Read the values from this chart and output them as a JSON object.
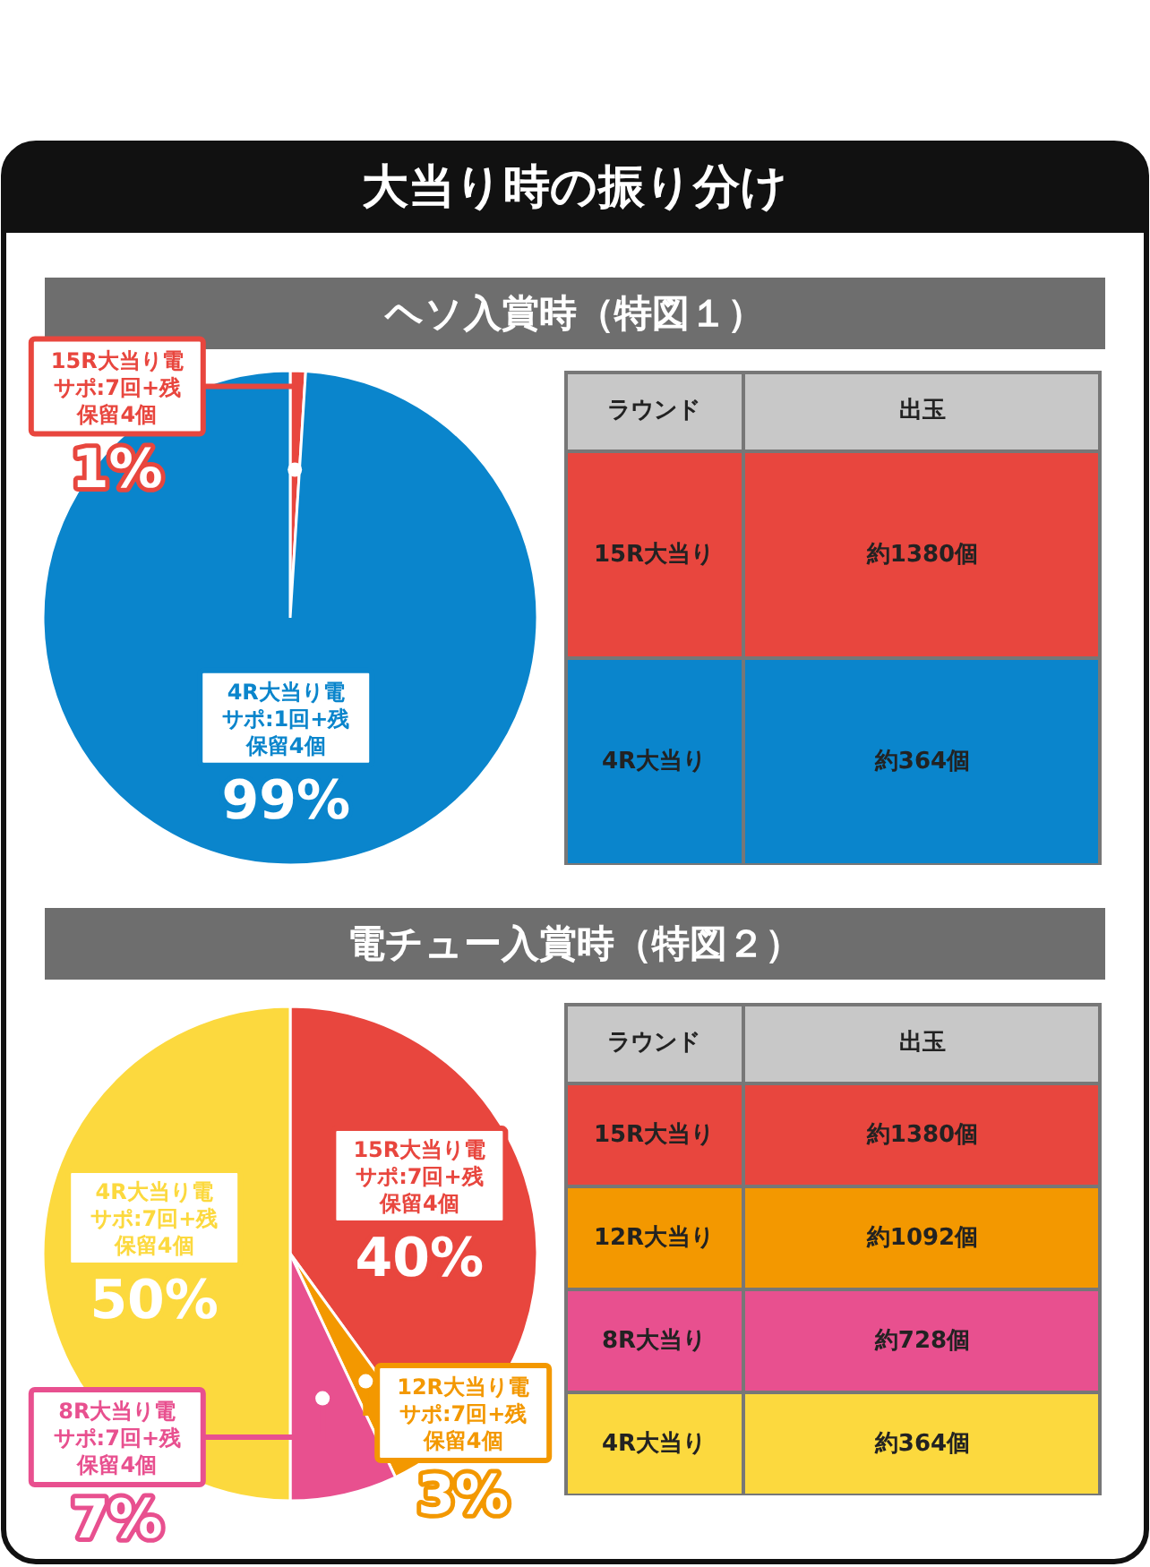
{
  "chart_data": [
    {
      "type": "pie",
      "title": "大当り時の振り分け",
      "subtitle": "ヘソ入賞時（特図１）",
      "categories": [
        "15R大当り電サポ:7回+残保留4個",
        "4R大当り電サポ:1回+残保留4個"
      ],
      "values": [
        1,
        99
      ],
      "colors": [
        "#e8463e",
        "#0a85cc"
      ],
      "value_labels": [
        "1%",
        "99%"
      ]
    },
    {
      "type": "other",
      "xlabel": "ラウンド",
      "ylabel": "出玉",
      "categories": [
        "15R大当り",
        "4R大当り"
      ],
      "values": [
        1380,
        364
      ],
      "value_labels": [
        "約1380個",
        "約364個"
      ],
      "colors": [
        "#e8463e",
        "#0a85cc"
      ]
    },
    {
      "type": "pie",
      "subtitle": "電チュー入賞時（特図２）",
      "categories": [
        "15R大当り電サポ:7回+残保留4個",
        "12R大当り電サポ:7回+残保留4個",
        "8R大当り電サポ:7回+残保留4個",
        "4R大当り電サポ:7回+残保留4個"
      ],
      "values": [
        40,
        3,
        7,
        50
      ],
      "colors": [
        "#e8463e",
        "#f39800",
        "#e8508f",
        "#fcd93e"
      ],
      "value_labels": [
        "40%",
        "3%",
        "7%",
        "50%"
      ]
    },
    {
      "type": "other",
      "xlabel": "ラウンド",
      "ylabel": "出玉",
      "categories": [
        "15R大当り",
        "12R大当り",
        "8R大当り",
        "4R大当り"
      ],
      "values": [
        1380,
        1092,
        728,
        364
      ],
      "value_labels": [
        "約1380個",
        "約1092個",
        "約728個",
        "約364個"
      ],
      "colors": [
        "#e8463e",
        "#f39800",
        "#e8508f",
        "#fcd93e"
      ]
    }
  ]
}
